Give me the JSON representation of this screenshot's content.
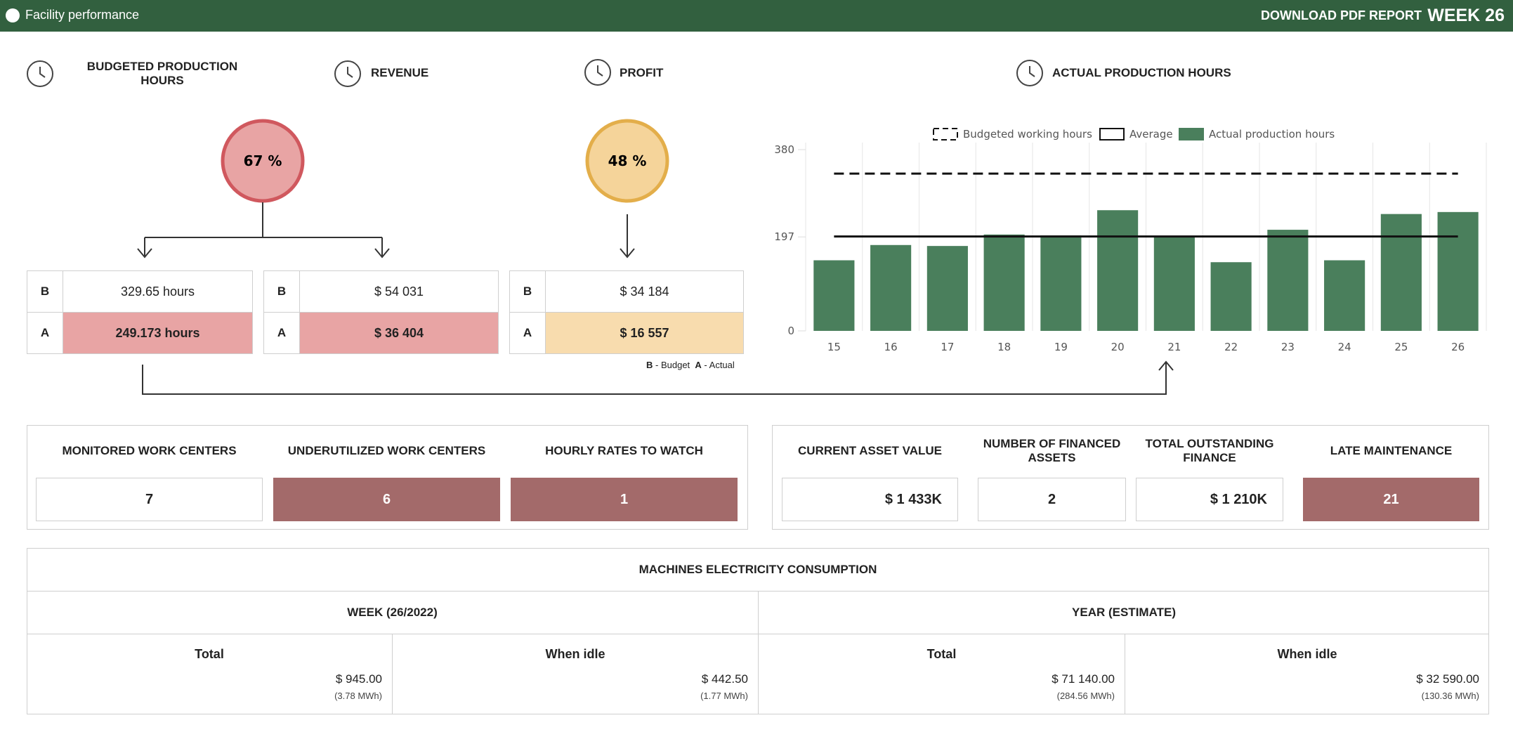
{
  "header": {
    "title": "Facility performance",
    "download": "DOWNLOAD PDF REPORT",
    "week": "WEEK 26"
  },
  "sections": [
    "BUDGETED PRODUCTION HOURS",
    "REVENUE",
    "PROFIT",
    "ACTUAL PRODUCTION HOURS"
  ],
  "gauges": [
    "67 %",
    "48 %"
  ],
  "tables": [
    {
      "rows": [
        [
          "B",
          "329.65 hours"
        ],
        [
          "A",
          "249.173 hours"
        ]
      ]
    },
    {
      "rows": [
        [
          "B",
          "$ 54 031"
        ],
        [
          "A",
          "$ 36 404"
        ]
      ]
    },
    {
      "rows": [
        [
          "B",
          "$ 34 184"
        ],
        [
          "A",
          "$ 16 557"
        ]
      ]
    }
  ],
  "legend_note": {
    "b": "B",
    "b_text": "- Budget",
    "a": "A",
    "a_text": "- Actual"
  },
  "work_centers": [
    {
      "title": "MONITORED WORK CENTERS",
      "value": "7"
    },
    {
      "title": "UNDERUTILIZED WORK CENTERS",
      "value": "6"
    },
    {
      "title": "HOURLY RATES TO WATCH",
      "value": "1"
    }
  ],
  "assets": [
    {
      "title": "CURRENT ASSET VALUE",
      "value": "$ 1 433K"
    },
    {
      "title": "NUMBER OF FINANCED ASSETS",
      "value": "2"
    },
    {
      "title": "TOTAL OUTSTANDING FINANCE",
      "value": "$ 1 210K"
    },
    {
      "title": "LATE MAINTENANCE",
      "value": "21"
    }
  ],
  "electricity": {
    "title": "MACHINES ELECTRICITY CONSUMPTION",
    "groups": [
      {
        "label": "WEEK (26/2022)",
        "cells": [
          {
            "label": "Total",
            "amount": "$ 945.00",
            "energy": "(3.78 MWh)"
          },
          {
            "label": "When idle",
            "amount": "$ 442.50",
            "energy": "(1.77 MWh)"
          }
        ]
      },
      {
        "label": "YEAR (ESTIMATE)",
        "cells": [
          {
            "label": "Total",
            "amount": "$ 71 140.00",
            "energy": "(284.56 MWh)"
          },
          {
            "label": "When idle",
            "amount": "$ 32 590.00",
            "energy": "(130.36 MWh)"
          }
        ]
      }
    ]
  },
  "chart_data": {
    "type": "bar",
    "categories": [
      "15",
      "16",
      "17",
      "18",
      "19",
      "20",
      "21",
      "22",
      "23",
      "24",
      "25",
      "26"
    ],
    "ylim": [
      0,
      380
    ],
    "yticks": [
      0,
      197,
      380
    ],
    "series": [
      {
        "name": "Budgeted working hours",
        "type": "line",
        "style": "dashed",
        "color": "#111111",
        "values": [
          329.65,
          329.65,
          329.65,
          329.65,
          329.65,
          329.65,
          329.65,
          329.65,
          329.65,
          329.65,
          329.65,
          329.65
        ]
      },
      {
        "name": "Average",
        "type": "line",
        "style": "solid",
        "color": "#111111",
        "values": [
          198,
          198,
          198,
          198,
          198,
          198,
          198,
          198,
          198,
          198,
          198,
          198
        ]
      },
      {
        "name": "Actual production hours",
        "type": "bar",
        "color": "#4a7f5c",
        "values": [
          148,
          180,
          178,
          202,
          200,
          253,
          198,
          144,
          212,
          148,
          245,
          249.173
        ]
      }
    ]
  }
}
